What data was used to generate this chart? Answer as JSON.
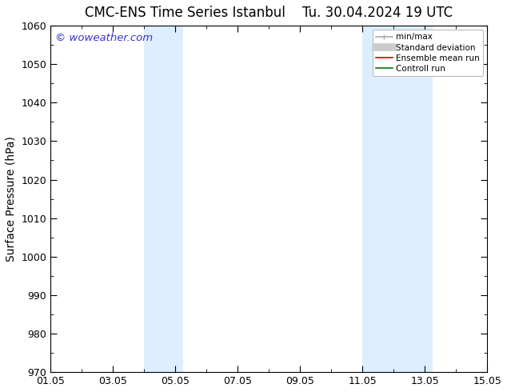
{
  "title_left": "CMC-ENS Time Series Istanbul",
  "title_right": "Tu. 30.04.2024 19 UTC",
  "ylabel": "Surface Pressure (hPa)",
  "ylim": [
    970,
    1060
  ],
  "yticks": [
    970,
    980,
    990,
    1000,
    1010,
    1020,
    1030,
    1040,
    1050,
    1060
  ],
  "xlim": [
    0,
    14
  ],
  "xtick_labels": [
    "01.05",
    "03.05",
    "05.05",
    "07.05",
    "09.05",
    "11.05",
    "13.05",
    "15.05"
  ],
  "xtick_positions": [
    0,
    2,
    4,
    6,
    8,
    10,
    12,
    14
  ],
  "shade_bands": [
    {
      "x_start": 3.0,
      "x_end": 4.25,
      "color": "#ddeeff"
    },
    {
      "x_start": 10.0,
      "x_end": 12.25,
      "color": "#ddeeff"
    }
  ],
  "watermark": "© woweather.com",
  "watermark_color": "#3333cc",
  "background_color": "#ffffff",
  "legend_items": [
    {
      "label": "min/max",
      "color": "#aaaaaa",
      "lw": 1.2
    },
    {
      "label": "Standard deviation",
      "color": "#cccccc",
      "lw": 7
    },
    {
      "label": "Ensemble mean run",
      "color": "#dd0000",
      "lw": 1.2
    },
    {
      "label": "Controll run",
      "color": "#007700",
      "lw": 1.2
    }
  ],
  "title_fontsize": 12,
  "tick_fontsize": 9,
  "ylabel_fontsize": 10,
  "figsize": [
    6.34,
    4.9
  ],
  "dpi": 100
}
